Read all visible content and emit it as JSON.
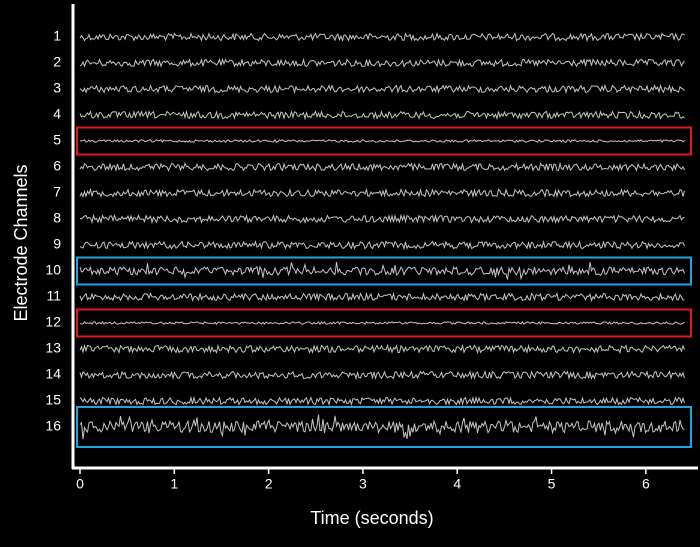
{
  "chart_data": {
    "type": "multichannel-trace",
    "xlabel": "Time (seconds)",
    "ylabel": "Electrode Channels",
    "categories": [
      "1",
      "2",
      "3",
      "4",
      "5",
      "6",
      "7",
      "8",
      "9",
      "10",
      "11",
      "12",
      "13",
      "14",
      "15",
      "16"
    ],
    "xlim": [
      0,
      6.5
    ],
    "xticks": [
      0,
      1,
      2,
      3,
      4,
      5,
      6
    ],
    "trace_color": "#d9d9d9",
    "highlights": [
      {
        "category": "5",
        "color": "#e0191f"
      },
      {
        "category": "10",
        "color": "#1ea6dc"
      },
      {
        "category": "12",
        "color": "#e0191f"
      },
      {
        "category": "16",
        "color": "#1ea6dc"
      }
    ]
  }
}
